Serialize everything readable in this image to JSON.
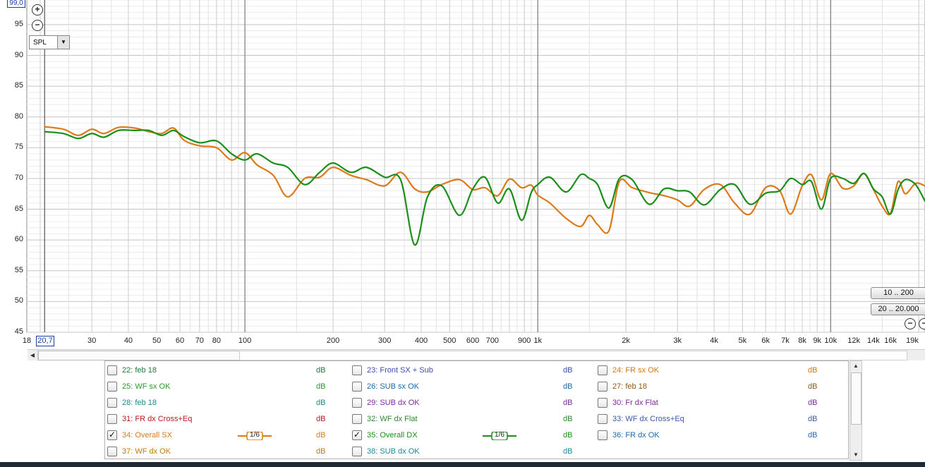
{
  "graph": {
    "y_max_label": "99,0",
    "x_min_label": "20,7",
    "y_ticks": [
      "95",
      "90",
      "85",
      "80",
      "75",
      "70",
      "65",
      "60",
      "55",
      "50",
      "45"
    ],
    "x_ticks": [
      "18",
      "30",
      "40",
      "50",
      "60",
      "70",
      "80",
      "100",
      "200",
      "300",
      "400",
      "500",
      "600",
      "700",
      "900",
      "1k",
      "2k",
      "3k",
      "4k",
      "5k",
      "6k",
      "7k",
      "8k",
      "9k",
      "10k",
      "12k",
      "14k",
      "16k",
      "19k"
    ],
    "mode_select": "SPL",
    "range_buttons": [
      "10 .. 200",
      "20 .. 20.000"
    ],
    "zoom_in_symbol": "+",
    "zoom_out_symbol": "−",
    "grid_color": "#cfcfcf",
    "major_grid_color": "#6a6a6a",
    "chart_data": {
      "type": "line",
      "x_scale": "log",
      "ylim": [
        45,
        99
      ],
      "xlim": [
        18,
        21000
      ],
      "series": [
        {
          "name": "34: Overall SX",
          "color": "#dd7a18",
          "points": [
            [
              20.7,
              78.4
            ],
            [
              24,
              78.0
            ],
            [
              27,
              77.0
            ],
            [
              30,
              78.0
            ],
            [
              33,
              77.3
            ],
            [
              37,
              78.3
            ],
            [
              42,
              78.2
            ],
            [
              47,
              77.6
            ],
            [
              52,
              77.3
            ],
            [
              57,
              78.2
            ],
            [
              62,
              76.2
            ],
            [
              70,
              75.3
            ],
            [
              80,
              75.0
            ],
            [
              90,
              73.0
            ],
            [
              100,
              74.2
            ],
            [
              110,
              72.2
            ],
            [
              125,
              70.5
            ],
            [
              140,
              67.0
            ],
            [
              160,
              70.0
            ],
            [
              180,
              70.2
            ],
            [
              200,
              71.8
            ],
            [
              230,
              70.5
            ],
            [
              260,
              69.8
            ],
            [
              300,
              68.8
            ],
            [
              340,
              71.0
            ],
            [
              380,
              68.3
            ],
            [
              420,
              67.8
            ],
            [
              470,
              69.0
            ],
            [
              540,
              69.8
            ],
            [
              600,
              68.2
            ],
            [
              660,
              68.5
            ],
            [
              730,
              67.2
            ],
            [
              800,
              69.9
            ],
            [
              880,
              68.5
            ],
            [
              950,
              68.9
            ],
            [
              1000,
              67.3
            ],
            [
              1100,
              66.0
            ],
            [
              1250,
              63.5
            ],
            [
              1400,
              62.2
            ],
            [
              1500,
              64.0
            ],
            [
              1600,
              62.5
            ],
            [
              1750,
              61.5
            ],
            [
              1900,
              69.5
            ],
            [
              2100,
              68.5
            ],
            [
              2400,
              67.7
            ],
            [
              2700,
              67.2
            ],
            [
              3000,
              66.5
            ],
            [
              3300,
              65.5
            ],
            [
              3700,
              68.2
            ],
            [
              4200,
              69.0
            ],
            [
              4700,
              66.0
            ],
            [
              5300,
              64.2
            ],
            [
              6000,
              68.5
            ],
            [
              6700,
              68.0
            ],
            [
              7300,
              64.2
            ],
            [
              8000,
              68.8
            ],
            [
              8600,
              70.6
            ],
            [
              9300,
              66.5
            ],
            [
              10000,
              70.8
            ],
            [
              11000,
              68.4
            ],
            [
              12000,
              68.8
            ],
            [
              13000,
              70.8
            ],
            [
              14000,
              68.2
            ],
            [
              15000,
              65.5
            ],
            [
              16000,
              64.3
            ],
            [
              17000,
              69.5
            ],
            [
              18000,
              67.5
            ],
            [
              19500,
              69.2
            ],
            [
              21000,
              68.8
            ]
          ]
        },
        {
          "name": "35: Overall DX",
          "color": "#1a8f1a",
          "points": [
            [
              20.7,
              77.6
            ],
            [
              24,
              77.3
            ],
            [
              27,
              76.5
            ],
            [
              30,
              77.3
            ],
            [
              33,
              76.7
            ],
            [
              37,
              77.8
            ],
            [
              42,
              77.8
            ],
            [
              47,
              77.8
            ],
            [
              52,
              77.0
            ],
            [
              57,
              77.8
            ],
            [
              62,
              76.8
            ],
            [
              70,
              75.8
            ],
            [
              80,
              76.1
            ],
            [
              90,
              74.0
            ],
            [
              100,
              73.0
            ],
            [
              110,
              74.0
            ],
            [
              125,
              72.5
            ],
            [
              140,
              71.8
            ],
            [
              160,
              69.0
            ],
            [
              180,
              71.0
            ],
            [
              200,
              72.5
            ],
            [
              230,
              71.0
            ],
            [
              260,
              71.8
            ],
            [
              300,
              70.2
            ],
            [
              340,
              69.8
            ],
            [
              380,
              59.2
            ],
            [
              420,
              67.0
            ],
            [
              470,
              68.8
            ],
            [
              540,
              64.0
            ],
            [
              600,
              68.3
            ],
            [
              660,
              70.2
            ],
            [
              730,
              66.0
            ],
            [
              800,
              68.3
            ],
            [
              880,
              63.2
            ],
            [
              950,
              67.7
            ],
            [
              1000,
              69.0
            ],
            [
              1100,
              70.2
            ],
            [
              1250,
              67.8
            ],
            [
              1400,
              70.6
            ],
            [
              1500,
              70.0
            ],
            [
              1600,
              69.0
            ],
            [
              1750,
              65.2
            ],
            [
              1900,
              70.0
            ],
            [
              2100,
              69.8
            ],
            [
              2400,
              65.8
            ],
            [
              2700,
              68.3
            ],
            [
              3000,
              68.0
            ],
            [
              3300,
              67.8
            ],
            [
              3700,
              65.7
            ],
            [
              4200,
              68.2
            ],
            [
              4700,
              69.0
            ],
            [
              5300,
              65.8
            ],
            [
              6000,
              67.6
            ],
            [
              6700,
              68.0
            ],
            [
              7300,
              70.0
            ],
            [
              8000,
              69.0
            ],
            [
              8600,
              69.5
            ],
            [
              9300,
              65.0
            ],
            [
              10000,
              70.0
            ],
            [
              11000,
              70.0
            ],
            [
              12000,
              69.2
            ],
            [
              13000,
              70.8
            ],
            [
              14000,
              68.3
            ],
            [
              15000,
              67.0
            ],
            [
              16000,
              64.2
            ],
            [
              17000,
              68.2
            ],
            [
              18000,
              69.8
            ],
            [
              19500,
              69.0
            ],
            [
              21000,
              66.3
            ]
          ]
        }
      ]
    }
  },
  "legend": {
    "items": [
      {
        "label": "22: feb 18",
        "color": "#1a7a3a",
        "db": "dB",
        "checked": false,
        "smoothing": ""
      },
      {
        "label": "23: Front SX + Sub",
        "color": "#3a4fa8",
        "db": "dB",
        "checked": false,
        "smoothing": ""
      },
      {
        "label": "24: FR sx OK",
        "color": "#d07a10",
        "db": "dB",
        "checked": false,
        "smoothing": ""
      },
      {
        "label": "25: WF sx OK",
        "color": "#2a9a2a",
        "db": "dB",
        "checked": false,
        "smoothing": ""
      },
      {
        "label": "26: SUB sx OK",
        "color": "#1a6aa0",
        "db": "dB",
        "checked": false,
        "smoothing": ""
      },
      {
        "label": "27: feb 18",
        "color": "#8a5a1a",
        "db": "dB",
        "checked": false,
        "smoothing": ""
      },
      {
        "label": "28: feb 18",
        "color": "#1a8a8a",
        "db": "dB",
        "checked": false,
        "smoothing": ""
      },
      {
        "label": "29: SUB dx OK",
        "color": "#7a2a9a",
        "db": "dB",
        "checked": false,
        "smoothing": ""
      },
      {
        "label": "30: Fr dx Flat",
        "color": "#7a2a9a",
        "db": "dB",
        "checked": false,
        "smoothing": ""
      },
      {
        "label": "31: FR dx Cross+Eq",
        "color": "#b81a1a",
        "db": "dB",
        "checked": false,
        "smoothing": ""
      },
      {
        "label": "32: WF dx Flat",
        "color": "#2a8a2a",
        "db": "dB",
        "checked": false,
        "smoothing": ""
      },
      {
        "label": "33: WF dx Cross+Eq",
        "color": "#3a5aa8",
        "db": "dB",
        "checked": false,
        "smoothing": ""
      },
      {
        "label": "34: Overall SX",
        "color": "#dd7a18",
        "db": "dB",
        "checked": true,
        "smoothing": "1/6"
      },
      {
        "label": "35: Overall DX",
        "color": "#1a8f1a",
        "db": "dB",
        "checked": true,
        "smoothing": "1/6"
      },
      {
        "label": "36: FR dx OK",
        "color": "#1a6ab8",
        "db": "dB",
        "checked": false,
        "smoothing": ""
      },
      {
        "label": "37: WF dx OK",
        "color": "#c07a10",
        "db": "dB",
        "checked": false,
        "smoothing": ""
      },
      {
        "label": "38: SUB dx OK",
        "color": "#1a8a9a",
        "db": "dB",
        "checked": false,
        "smoothing": ""
      }
    ]
  }
}
